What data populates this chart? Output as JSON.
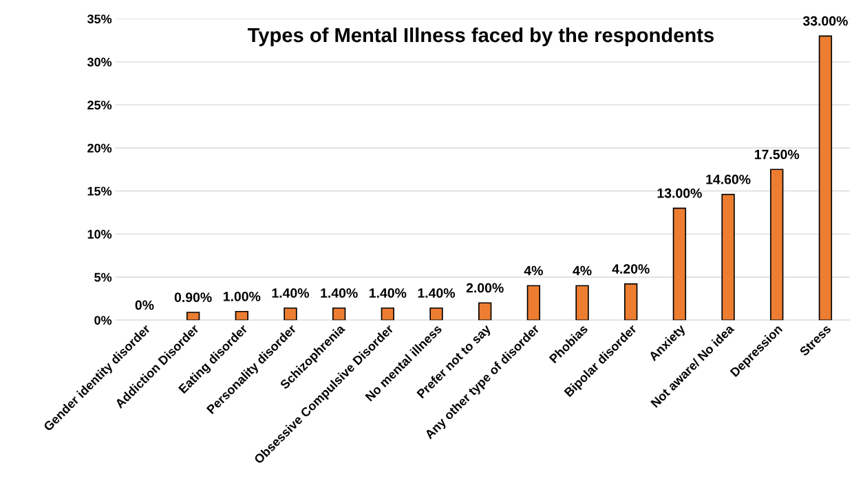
{
  "chart_data": {
    "type": "bar",
    "title": "Types of Mental Illness faced by the respondents",
    "categories": [
      "Gender identity disorder",
      "Addiction Disorder",
      "Eating disorder",
      "Personality disorder",
      "Schizophrenia",
      "Obsessive Compulsive Disorder",
      "No mental illness",
      "Prefer not to say",
      "Any other type of disorder",
      "Phobias",
      "Bipolar disorder",
      "Anxiety",
      "Not aware/ No idea",
      "Depression",
      "Stress"
    ],
    "values": [
      0,
      0.9,
      1.0,
      1.4,
      1.4,
      1.4,
      1.4,
      2.0,
      4,
      4,
      4.2,
      13.0,
      14.6,
      17.5,
      33.0
    ],
    "value_labels": [
      "0%",
      "0.90%",
      "1.00%",
      "1.40%",
      "1.40%",
      "1.40%",
      "1.40%",
      "2.00%",
      "4%",
      "4%",
      "4.20%",
      "13.00%",
      "14.60%",
      "17.50%",
      "33.00%"
    ],
    "color": "#ed7d31",
    "ylim": [
      0,
      35
    ],
    "yticks": [
      {
        "value": 0,
        "label": "0%"
      },
      {
        "value": 5,
        "label": "5%"
      },
      {
        "value": 10,
        "label": "10%"
      },
      {
        "value": 15,
        "label": "15%"
      },
      {
        "value": 20,
        "label": "20%"
      },
      {
        "value": 25,
        "label": "25%"
      },
      {
        "value": 30,
        "label": "30%"
      },
      {
        "value": 35,
        "label": "35%"
      }
    ],
    "grid": "y",
    "legend": false
  }
}
